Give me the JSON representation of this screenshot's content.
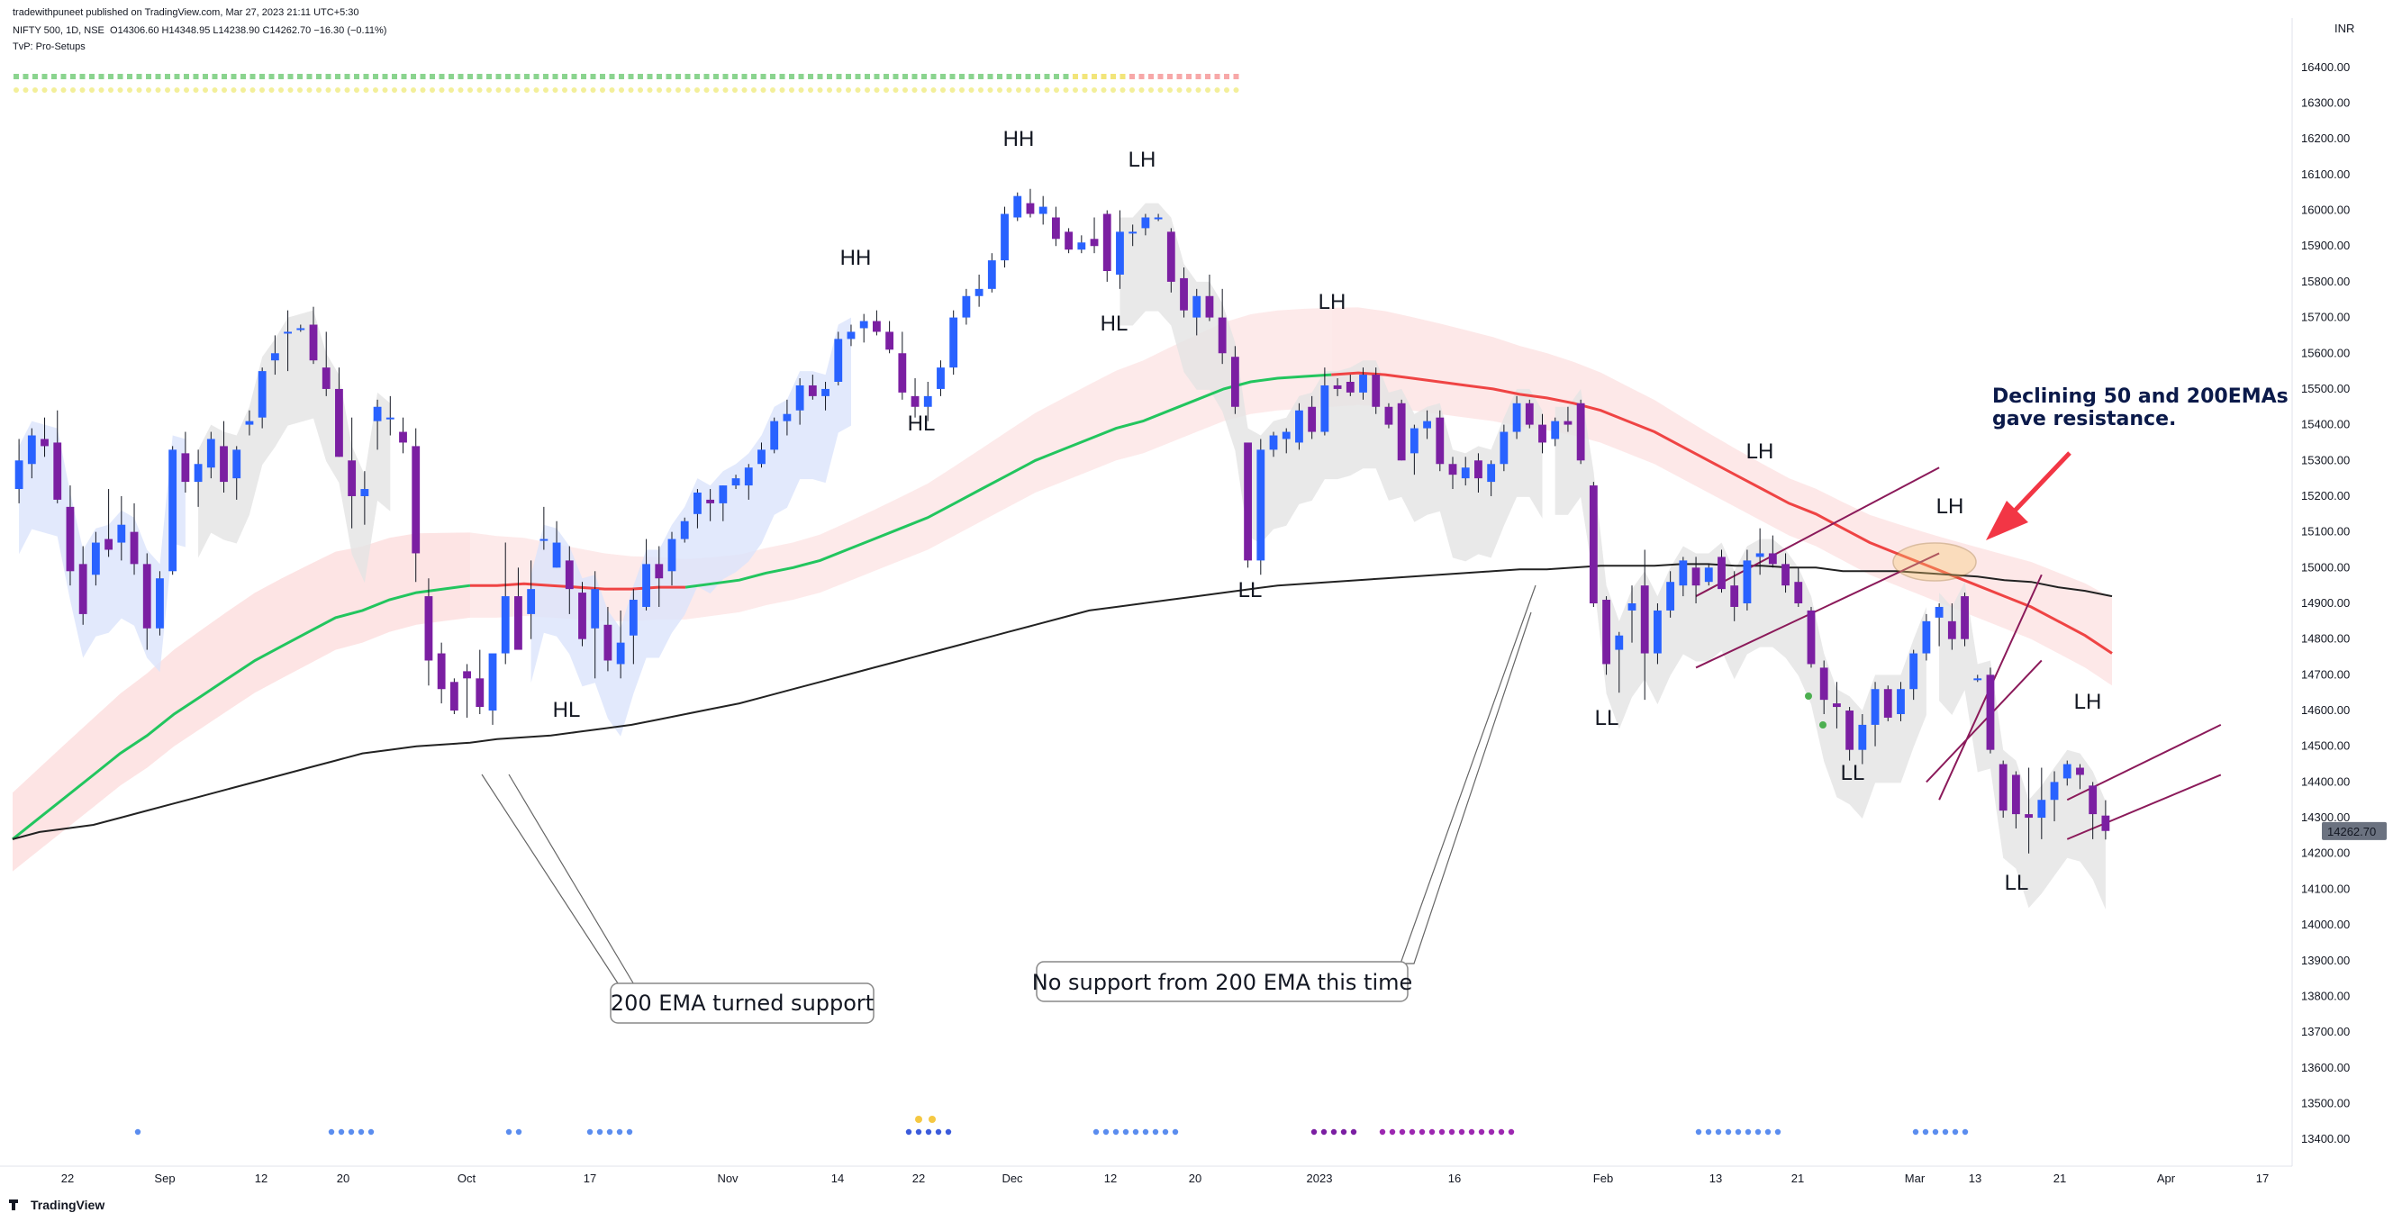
{
  "header": {
    "published_line": "tradewithpuneet published on TradingView.com, Mar 27, 2023 21:11 UTC+5:30",
    "symbol": "NIFTY 500, 1D, NSE",
    "ohlc": "O14306.60 H14348.95 L14238.90 C14262.70 −16.30 (−0.11%)",
    "indicator": "TvP: Pro-Setups"
  },
  "footer": {
    "brand": "TradingView"
  },
  "currency": "INR",
  "colors": {
    "bull_candle": "#2962ff",
    "bear_candle": "#7b1fa2",
    "ema50": "#22c55e",
    "ema50_below": "#ef4444",
    "ema200": "#222222",
    "cloud_blue": "#dbe4fb",
    "cloud_red": "#fcd8d8",
    "cloud_grey": "#e3e3e3",
    "channel": "#8b1a5a",
    "arrow": "#f23645"
  },
  "chart_data": {
    "type": "candlestick",
    "timeframe": "1D",
    "ylim": [
      13350,
      16450
    ],
    "y_ticks": [
      13400,
      13500,
      13600,
      13700,
      13800,
      13900,
      14000,
      14100,
      14200,
      14300,
      14400,
      14500,
      14600,
      14700,
      14800,
      14900,
      15000,
      15100,
      15200,
      15300,
      15400,
      15500,
      15600,
      15700,
      15800,
      15900,
      16000,
      16100,
      16200,
      16300,
      16400
    ],
    "x_ticks": [
      "22",
      "Sep",
      "12",
      "20",
      "Oct",
      "17",
      "Nov",
      "14",
      "22",
      "Dec",
      "12",
      "20",
      "2023",
      "16",
      "Feb",
      "13",
      "21",
      "Mar",
      "13",
      "21",
      "Apr",
      "17"
    ],
    "last_price": "14262.70",
    "candles": [
      [
        15220,
        15360,
        15180,
        15300
      ],
      [
        15290,
        15390,
        15250,
        15370
      ],
      [
        15360,
        15420,
        15310,
        15340
      ],
      [
        15350,
        15440,
        15180,
        15190
      ],
      [
        15170,
        15230,
        14950,
        14990
      ],
      [
        15010,
        15060,
        14840,
        14870
      ],
      [
        14980,
        15100,
        14950,
        15070
      ],
      [
        15080,
        15220,
        15030,
        15050
      ],
      [
        15070,
        15200,
        15020,
        15120
      ],
      [
        15100,
        15180,
        14980,
        15010
      ],
      [
        15010,
        15040,
        14770,
        14830
      ],
      [
        14830,
        14990,
        14810,
        14970
      ],
      [
        14990,
        15340,
        14980,
        15330
      ],
      [
        15320,
        15380,
        15210,
        15240
      ],
      [
        15240,
        15330,
        15170,
        15290
      ],
      [
        15280,
        15380,
        15250,
        15360
      ],
      [
        15340,
        15410,
        15210,
        15240
      ],
      [
        15250,
        15340,
        15190,
        15330
      ],
      [
        15400,
        15440,
        15370,
        15410
      ],
      [
        15420,
        15560,
        15390,
        15550
      ],
      [
        15580,
        15650,
        15540,
        15600
      ],
      [
        15660,
        15720,
        15550,
        15660
      ],
      [
        15670,
        15680,
        15660,
        15670
      ],
      [
        15680,
        15730,
        15570,
        15580
      ],
      [
        15560,
        15660,
        15480,
        15500
      ],
      [
        15500,
        15560,
        15310,
        15310
      ],
      [
        15300,
        15420,
        15110,
        15200
      ],
      [
        15200,
        15270,
        15120,
        15220
      ],
      [
        15410,
        15470,
        15330,
        15450
      ],
      [
        15420,
        15480,
        15370,
        15420
      ],
      [
        15380,
        15420,
        15320,
        15350
      ],
      [
        15340,
        15390,
        14960,
        15040
      ],
      [
        14920,
        14970,
        14670,
        14740
      ],
      [
        14760,
        14790,
        14620,
        14660
      ],
      [
        14680,
        14690,
        14590,
        14600
      ],
      [
        14710,
        14730,
        14580,
        14690
      ],
      [
        14690,
        14770,
        14590,
        14610
      ],
      [
        14600,
        14750,
        14560,
        14760
      ],
      [
        14760,
        15070,
        14730,
        14920
      ],
      [
        14920,
        15000,
        14800,
        14770
      ],
      [
        14870,
        15020,
        14800,
        14940
      ],
      [
        15080,
        15170,
        15050,
        15080
      ],
      [
        15000,
        15130,
        15000,
        15070
      ],
      [
        15020,
        15060,
        14870,
        14940
      ],
      [
        14930,
        14960,
        14780,
        14800
      ],
      [
        14830,
        14990,
        14690,
        14940
      ],
      [
        14840,
        14890,
        14710,
        14740
      ],
      [
        14730,
        14880,
        14690,
        14790
      ],
      [
        14810,
        14940,
        14730,
        14910
      ],
      [
        14890,
        15080,
        14880,
        15010
      ],
      [
        15010,
        15060,
        14890,
        14970
      ],
      [
        14990,
        15100,
        14950,
        15080
      ],
      [
        15080,
        15140,
        15070,
        15130
      ],
      [
        15150,
        15220,
        15110,
        15210
      ],
      [
        15190,
        15220,
        15130,
        15180
      ],
      [
        15180,
        15230,
        15130,
        15230
      ],
      [
        15230,
        15260,
        15220,
        15250
      ],
      [
        15230,
        15290,
        15190,
        15280
      ],
      [
        15290,
        15350,
        15280,
        15330
      ],
      [
        15330,
        15420,
        15320,
        15410
      ],
      [
        15410,
        15470,
        15370,
        15430
      ],
      [
        15440,
        15530,
        15400,
        15510
      ],
      [
        15510,
        15540,
        15470,
        15480
      ],
      [
        15480,
        15520,
        15440,
        15500
      ],
      [
        15520,
        15660,
        15510,
        15640
      ],
      [
        15640,
        15680,
        15620,
        15660
      ],
      [
        15670,
        15710,
        15630,
        15690
      ],
      [
        15690,
        15720,
        15650,
        15660
      ],
      [
        15660,
        15690,
        15600,
        15610
      ],
      [
        15600,
        15660,
        15470,
        15490
      ],
      [
        15480,
        15530,
        15420,
        15450
      ],
      [
        15450,
        15520,
        15410,
        15480
      ],
      [
        15500,
        15580,
        15480,
        15560
      ],
      [
        15560,
        15720,
        15540,
        15700
      ],
      [
        15700,
        15780,
        15680,
        15760
      ],
      [
        15760,
        15820,
        15730,
        15780
      ],
      [
        15780,
        15880,
        15770,
        15860
      ],
      [
        15860,
        16010,
        15840,
        15990
      ],
      [
        15980,
        16050,
        15970,
        16040
      ],
      [
        16020,
        16060,
        15980,
        15990
      ],
      [
        15990,
        16040,
        15960,
        16010
      ],
      [
        15980,
        16010,
        15900,
        15920
      ],
      [
        15940,
        15950,
        15880,
        15890
      ],
      [
        15890,
        15930,
        15880,
        15910
      ],
      [
        15920,
        15980,
        15880,
        15900
      ],
      [
        15990,
        16000,
        15800,
        15830
      ],
      [
        15820,
        16000,
        15780,
        15940
      ],
      [
        15940,
        15960,
        15900,
        15940
      ],
      [
        15950,
        15990,
        15930,
        15980
      ],
      [
        15980,
        15990,
        15970,
        15980
      ],
      [
        15940,
        15950,
        15770,
        15800
      ],
      [
        15810,
        15840,
        15700,
        15720
      ],
      [
        15700,
        15780,
        15650,
        15760
      ],
      [
        15760,
        15820,
        15690,
        15700
      ],
      [
        15700,
        15780,
        15570,
        15600
      ],
      [
        15590,
        15620,
        15430,
        15450
      ],
      [
        15350,
        15350,
        15000,
        15020
      ],
      [
        15020,
        15360,
        14980,
        15330
      ],
      [
        15330,
        15380,
        15310,
        15370
      ],
      [
        15360,
        15390,
        15320,
        15380
      ],
      [
        15350,
        15460,
        15330,
        15440
      ],
      [
        15450,
        15480,
        15360,
        15380
      ],
      [
        15380,
        15560,
        15370,
        15510
      ],
      [
        15510,
        15530,
        15480,
        15500
      ],
      [
        15520,
        15540,
        15480,
        15490
      ],
      [
        15490,
        15560,
        15470,
        15540
      ],
      [
        15540,
        15560,
        15430,
        15450
      ],
      [
        15450,
        15460,
        15390,
        15400
      ],
      [
        15460,
        15470,
        15300,
        15300
      ],
      [
        15320,
        15400,
        15260,
        15390
      ],
      [
        15390,
        15440,
        15360,
        15410
      ],
      [
        15420,
        15440,
        15270,
        15290
      ],
      [
        15290,
        15310,
        15220,
        15260
      ],
      [
        15250,
        15310,
        15230,
        15280
      ],
      [
        15300,
        15320,
        15210,
        15250
      ],
      [
        15240,
        15300,
        15200,
        15290
      ],
      [
        15290,
        15400,
        15270,
        15380
      ],
      [
        15380,
        15480,
        15360,
        15460
      ],
      [
        15460,
        15470,
        15390,
        15400
      ],
      [
        15400,
        15430,
        15320,
        15350
      ],
      [
        15360,
        15420,
        15340,
        15410
      ],
      [
        15410,
        15450,
        15380,
        15400
      ],
      [
        15460,
        15470,
        15290,
        15300
      ],
      [
        15230,
        15240,
        14890,
        14900
      ],
      [
        14910,
        14920,
        14700,
        14730
      ],
      [
        14770,
        14820,
        14650,
        14810
      ],
      [
        14880,
        14950,
        14790,
        14900
      ],
      [
        14950,
        15050,
        14630,
        14760
      ],
      [
        14760,
        14900,
        14730,
        14880
      ],
      [
        14880,
        14990,
        14860,
        14960
      ],
      [
        14950,
        15030,
        14920,
        15020
      ],
      [
        15000,
        15030,
        14900,
        14950
      ],
      [
        14960,
        15010,
        14950,
        15000
      ],
      [
        15030,
        15050,
        14930,
        14940
      ],
      [
        14950,
        14990,
        14850,
        14890
      ],
      [
        14900,
        15050,
        14880,
        15020
      ],
      [
        15030,
        15110,
        14980,
        15040
      ],
      [
        15040,
        15090,
        15000,
        15010
      ],
      [
        15010,
        15040,
        14930,
        14950
      ],
      [
        14960,
        15000,
        14890,
        14900
      ],
      [
        14880,
        14890,
        14720,
        14730
      ],
      [
        14720,
        14740,
        14590,
        14630
      ],
      [
        14620,
        14680,
        14550,
        14610
      ],
      [
        14600,
        14610,
        14460,
        14490
      ],
      [
        14490,
        14590,
        14450,
        14560
      ],
      [
        14560,
        14680,
        14500,
        14660
      ],
      [
        14660,
        14670,
        14570,
        14580
      ],
      [
        14590,
        14680,
        14570,
        14660
      ],
      [
        14660,
        14770,
        14630,
        14760
      ],
      [
        14760,
        14870,
        14740,
        14850
      ],
      [
        14860,
        14900,
        14780,
        14890
      ],
      [
        14850,
        14900,
        14770,
        14800
      ],
      [
        14920,
        14930,
        14780,
        14800
      ],
      [
        14690,
        14700,
        14680,
        14690
      ],
      [
        14700,
        14720,
        14480,
        14490
      ],
      [
        14450,
        14460,
        14300,
        14320
      ],
      [
        14420,
        14430,
        14270,
        14310
      ],
      [
        14310,
        14440,
        14200,
        14300
      ],
      [
        14300,
        14440,
        14240,
        14350
      ],
      [
        14350,
        14430,
        14290,
        14400
      ],
      [
        14410,
        14460,
        14390,
        14450
      ],
      [
        14440,
        14450,
        14380,
        14420
      ],
      [
        14390,
        14400,
        14240,
        14310
      ],
      [
        14306,
        14349,
        14239,
        14263
      ]
    ],
    "ema50": [
      14240,
      14300,
      14360,
      14420,
      14480,
      14530,
      14590,
      14640,
      14690,
      14740,
      14780,
      14820,
      14860,
      14880,
      14910,
      14930,
      14940,
      14950,
      14950,
      14955,
      14950,
      14945,
      14940,
      14940,
      14945,
      14945,
      14955,
      14965,
      14985,
      15000,
      15020,
      15050,
      15080,
      15110,
      15140,
      15180,
      15220,
      15260,
      15300,
      15330,
      15360,
      15390,
      15410,
      15440,
      15470,
      15500,
      15520,
      15530,
      15535,
      15540,
      15545,
      15540,
      15530,
      15520,
      15510,
      15500,
      15485,
      15475,
      15460,
      15440,
      15410,
      15380,
      15340,
      15300,
      15260,
      15220,
      15180,
      15150,
      15110,
      15070,
      15040,
      15010,
      14980,
      14950,
      14920,
      14890,
      14850,
      14810,
      14760
    ],
    "ema200": [
      14240,
      14260,
      14270,
      14280,
      14300,
      14320,
      14340,
      14360,
      14380,
      14400,
      14420,
      14440,
      14460,
      14480,
      14490,
      14500,
      14505,
      14510,
      14520,
      14525,
      14530,
      14540,
      14550,
      14560,
      14575,
      14590,
      14605,
      14620,
      14640,
      14660,
      14680,
      14700,
      14720,
      14740,
      14760,
      14780,
      14800,
      14820,
      14840,
      14860,
      14880,
      14890,
      14900,
      14910,
      14920,
      14930,
      14940,
      14950,
      14955,
      14960,
      14965,
      14970,
      14975,
      14980,
      14985,
      14990,
      14995,
      14995,
      15000,
      15005,
      15005,
      15005,
      15010,
      15010,
      15005,
      15005,
      15000,
      15000,
      14990,
      14990,
      14990,
      14985,
      14980,
      14975,
      14965,
      14960,
      14945,
      14935,
      14920
    ],
    "annotations": {
      "swing_labels": [
        "HL",
        "HH",
        "HL",
        "HH",
        "LH",
        "HL",
        "LH",
        "LL",
        "LH",
        "LL",
        "LL",
        "LH",
        "LH",
        "LL"
      ],
      "callout_support": "200 EMA turned support",
      "callout_no_support": "No support from 200 EMA this time",
      "note_line1": "Declining 50 and 200EMAs",
      "note_line2": "gave resistance."
    }
  }
}
